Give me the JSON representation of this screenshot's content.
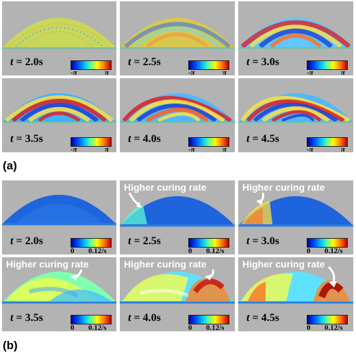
{
  "section_a": {
    "label": "(a)",
    "colorbar": {
      "min_label": "-π",
      "max_label": "π"
    },
    "panels": [
      {
        "t_prefix": "t",
        "t_value": "= 2.0s"
      },
      {
        "t_prefix": "t",
        "t_value": "= 2.5s"
      },
      {
        "t_prefix": "t",
        "t_value": "= 3.0s"
      },
      {
        "t_prefix": "t",
        "t_value": "= 3.5s"
      },
      {
        "t_prefix": "t",
        "t_value": "= 4.0s"
      },
      {
        "t_prefix": "t",
        "t_value": "= 4.5s"
      }
    ]
  },
  "section_b": {
    "label": "(b)",
    "colorbar": {
      "min_label": "0",
      "max_label": "0.12/s"
    },
    "annotation": "Higher curing rate",
    "panels": [
      {
        "t_prefix": "t",
        "t_value": "= 2.0s",
        "annotated": false
      },
      {
        "t_prefix": "t",
        "t_value": "= 2.5s",
        "annotated": true
      },
      {
        "t_prefix": "t",
        "t_value": "= 3.0s",
        "annotated": true
      },
      {
        "t_prefix": "t",
        "t_value": "= 3.5s",
        "annotated": true
      },
      {
        "t_prefix": "t",
        "t_value": "= 4.0s",
        "annotated": true
      },
      {
        "t_prefix": "t",
        "t_value": "= 4.5s",
        "annotated": true
      }
    ]
  },
  "colors": {
    "panel_background": "#b3b3b3",
    "annotation_text": "#ffffff",
    "dome_blue": "#1e64dc"
  }
}
